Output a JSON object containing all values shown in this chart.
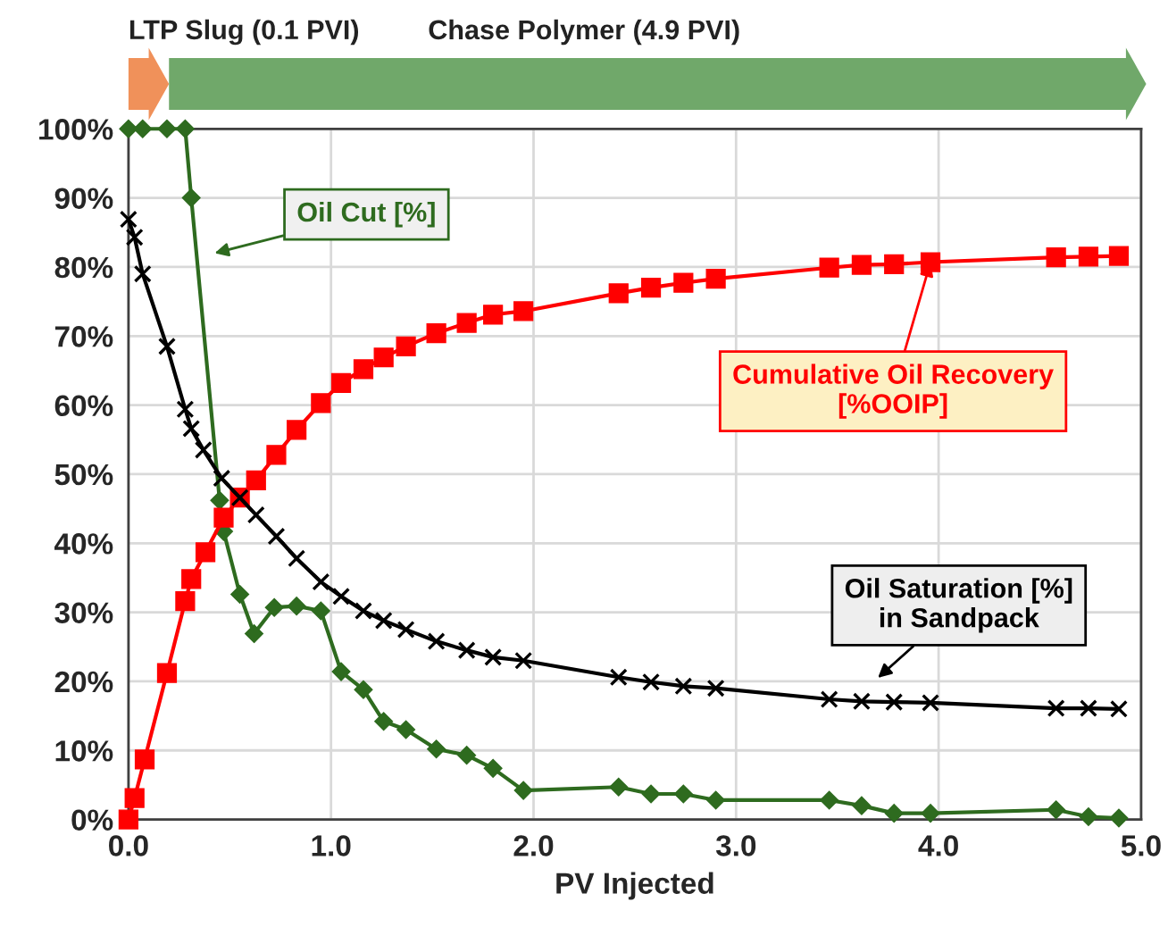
{
  "chart_data": {
    "type": "line",
    "xlabel": "PV Injected",
    "xlim": [
      0,
      5
    ],
    "xticks": [
      {
        "value": 0,
        "label": "0.0"
      },
      {
        "value": 1,
        "label": "1.0"
      },
      {
        "value": 2,
        "label": "2.0"
      },
      {
        "value": 3,
        "label": "3.0"
      },
      {
        "value": 4,
        "label": "4.0"
      },
      {
        "value": 5,
        "label": "5.0"
      }
    ],
    "ylim": [
      0,
      100
    ],
    "yticks": [
      {
        "value": 0,
        "label": "0%"
      },
      {
        "value": 10,
        "label": "10%"
      },
      {
        "value": 20,
        "label": "20%"
      },
      {
        "value": 30,
        "label": "30%"
      },
      {
        "value": 40,
        "label": "40%"
      },
      {
        "value": 50,
        "label": "50%"
      },
      {
        "value": 60,
        "label": "60%"
      },
      {
        "value": 70,
        "label": "70%"
      },
      {
        "value": 80,
        "label": "80%"
      },
      {
        "value": 90,
        "label": "90%"
      },
      {
        "value": 100,
        "label": "100%"
      }
    ],
    "grid": true,
    "legend": false,
    "series": [
      {
        "color": "#2e6b1f",
        "marker": "diamond",
        "x": [
          0,
          0.07,
          0.19,
          0.28,
          0.31,
          0.45,
          0.47,
          0.55,
          0.62,
          0.72,
          0.83,
          0.95,
          1.05,
          1.16,
          1.26,
          1.37,
          1.52,
          1.67,
          1.8,
          1.95,
          2.42,
          2.58,
          2.74,
          2.9,
          3.46,
          3.62,
          3.78,
          3.96,
          4.58,
          4.74,
          4.89
        ],
        "values": [
          100,
          100,
          100,
          100,
          90,
          46.2,
          41.7,
          32.6,
          26.9,
          30.7,
          30.9,
          30.2,
          21.4,
          18.8,
          14.2,
          13.0,
          10.2,
          9.3,
          7.4,
          4.2,
          4.7,
          3.7,
          3.7,
          2.8,
          2.8,
          2.0,
          0.9,
          0.9,
          1.4,
          0.4,
          0.2
        ]
      },
      {
        "color": "#ff0000",
        "marker": "square",
        "x": [
          0,
          0.03,
          0.08,
          0.19,
          0.28,
          0.31,
          0.38,
          0.47,
          0.55,
          0.63,
          0.73,
          0.83,
          0.95,
          1.05,
          1.16,
          1.26,
          1.37,
          1.52,
          1.67,
          1.8,
          1.95,
          2.42,
          2.58,
          2.74,
          2.9,
          3.46,
          3.62,
          3.78,
          3.96,
          4.58,
          4.74,
          4.89
        ],
        "values": [
          0,
          3.1,
          8.7,
          21.2,
          31.6,
          34.8,
          38.7,
          43.7,
          46.6,
          49.1,
          52.8,
          56.4,
          60.3,
          63.2,
          65.2,
          66.9,
          68.5,
          70.4,
          71.9,
          73.1,
          73.6,
          76.2,
          77.0,
          77.7,
          78.3,
          79.9,
          80.3,
          80.4,
          80.7,
          81.4,
          81.5,
          81.6
        ]
      },
      {
        "color": "#000000",
        "marker": "cross",
        "x": [
          0,
          0.03,
          0.07,
          0.19,
          0.28,
          0.31,
          0.37,
          0.46,
          0.55,
          0.63,
          0.73,
          0.83,
          0.95,
          1.05,
          1.16,
          1.26,
          1.37,
          1.52,
          1.67,
          1.8,
          1.95,
          2.42,
          2.58,
          2.74,
          2.9,
          3.46,
          3.62,
          3.78,
          3.96,
          4.58,
          4.74,
          4.89
        ],
        "values": [
          86.9,
          84.3,
          79.0,
          68.5,
          59.4,
          56.6,
          53.5,
          49.4,
          46.6,
          44.1,
          41.0,
          37.8,
          34.4,
          32.3,
          30.2,
          28.8,
          27.5,
          25.8,
          24.5,
          23.5,
          23.0,
          20.6,
          19.9,
          19.3,
          19.0,
          17.4,
          17.1,
          17.0,
          16.9,
          16.1,
          16.1,
          16.0
        ]
      }
    ],
    "annotations": [
      "Oil Cut [%]",
      {
        "text": "Cumulative Oil Recovery\n[%OOIP]",
        "x": 3.96,
        "y": 80.7
      },
      "Oil Saturation [%]\nin Sandpack",
      "LTP Slug (0.1 PVI)",
      "Chase Polymer (4.9 PVI)"
    ]
  }
}
